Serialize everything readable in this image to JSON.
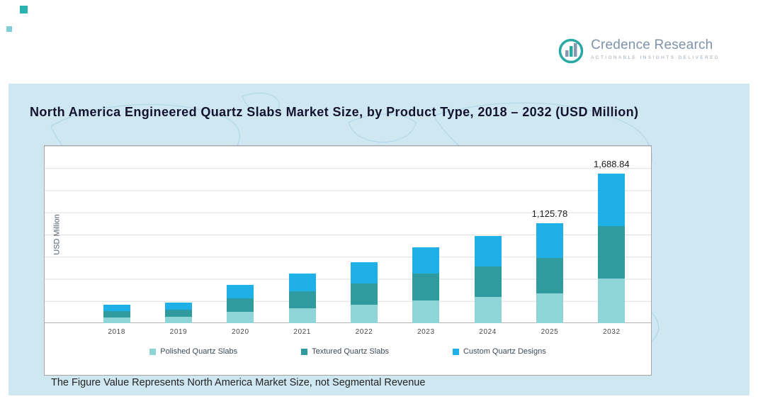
{
  "logo": {
    "name": "Credence Research",
    "tagline": "Actionable Insights Delivered",
    "icon": "bar-chart-logo-icon",
    "text_color": "#7e93aa",
    "accent_color": "#2aa8a4"
  },
  "panel": {
    "background": "#cfe7f1",
    "footnote": "The Figure Value Represents North America Market Size, not Segmental Revenue"
  },
  "chart_data": {
    "type": "bar",
    "stacked": true,
    "title": "North America Engineered Quartz Slabs Market Size, by Product Type, 2018 – 2032 (USD Million)",
    "ylabel": "USD Million",
    "xlabel": "",
    "categories": [
      "2018",
      "2019",
      "2020",
      "2021",
      "2022",
      "2023",
      "2024",
      "2025",
      "2032"
    ],
    "series": [
      {
        "name": "Polished Quartz Slabs",
        "color": "#8fd4d6",
        "values": [
          63,
          71,
          129,
          168,
          207,
          258,
          296,
          338,
          507
        ]
      },
      {
        "name": "Textured Quartz Slabs",
        "color": "#2f9b9e",
        "values": [
          74,
          82,
          151,
          196,
          242,
          301,
          344,
          394,
          591
        ]
      },
      {
        "name": "Custom Quartz Designs",
        "color": "#1fb0e8",
        "values": [
          73,
          82,
          150,
          196,
          241,
          301,
          345,
          393.78,
          590.84
        ]
      }
    ],
    "totals": [
      210,
      235,
      430,
      560,
      690,
      860,
      985,
      1125.78,
      1688.84
    ],
    "data_labels": {
      "2025": "1,125.78",
      "2032": "1,688.84"
    },
    "ylim": [
      0,
      2000
    ],
    "grid": true,
    "legend_position": "bottom"
  }
}
